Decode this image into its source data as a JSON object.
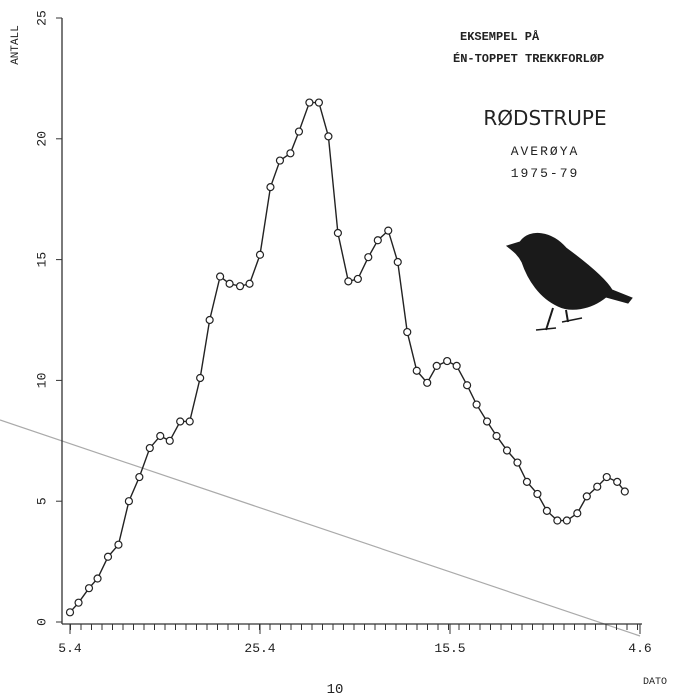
{
  "chart_data": {
    "type": "line",
    "y_label": "ANTALL",
    "x_label": "DATO",
    "annotations": [
      "EKSEMPEL PÅ",
      "ÉN-TOPPET TREKKFORLØP"
    ],
    "title": "RØDSTRUPE",
    "subtitle": "AVERØYA",
    "period": "1975-79",
    "x": [
      0,
      0.9,
      2.0,
      2.9,
      4.0,
      5.1,
      6.2,
      7.3,
      8.4,
      9.5,
      10.5,
      11.6,
      12.6,
      13.7,
      14.7,
      15.8,
      16.8,
      17.9,
      18.9,
      20.0,
      21.1,
      22.1,
      23.2,
      24.1,
      25.2,
      26.2,
      27.2,
      28.2,
      29.3,
      30.3,
      31.4,
      32.4,
      33.5,
      34.5,
      35.5,
      36.5,
      37.6,
      38.6,
      39.7,
      40.7,
      41.8,
      42.8,
      43.9,
      44.9,
      46.0,
      47.1,
      48.1,
      49.2,
      50.2,
      51.3,
      52.3,
      53.4,
      54.4,
      55.5,
      56.5,
      57.6,
      58.4
    ],
    "values": [
      0.4,
      0.8,
      1.4,
      1.8,
      2.7,
      3.2,
      5.0,
      6.0,
      7.2,
      7.7,
      7.5,
      8.3,
      8.3,
      10.1,
      12.5,
      14.3,
      14.0,
      13.9,
      14.0,
      15.2,
      18.0,
      19.1,
      19.4,
      20.3,
      21.5,
      21.5,
      20.1,
      16.1,
      14.1,
      14.2,
      15.1,
      15.8,
      16.2,
      14.9,
      12.0,
      10.4,
      9.9,
      10.6,
      10.8,
      10.6,
      9.8,
      9.0,
      8.3,
      7.7,
      7.1,
      6.6,
      5.8,
      5.3,
      4.6,
      4.2,
      4.2,
      4.5,
      5.2,
      5.6,
      6.0,
      5.8,
      5.4
    ],
    "color": "#222222",
    "xlim": [
      0,
      60
    ],
    "xticks": [
      {
        "value": 0,
        "label": "5.4"
      },
      {
        "value": 20,
        "label": "25.4"
      },
      {
        "value": 40,
        "label": "15.5"
      },
      {
        "value": 60,
        "label": "4.6"
      }
    ],
    "ylim": [
      0,
      25
    ],
    "yticks": [
      0,
      5,
      10,
      15,
      20,
      25
    ]
  },
  "page_number": "10"
}
